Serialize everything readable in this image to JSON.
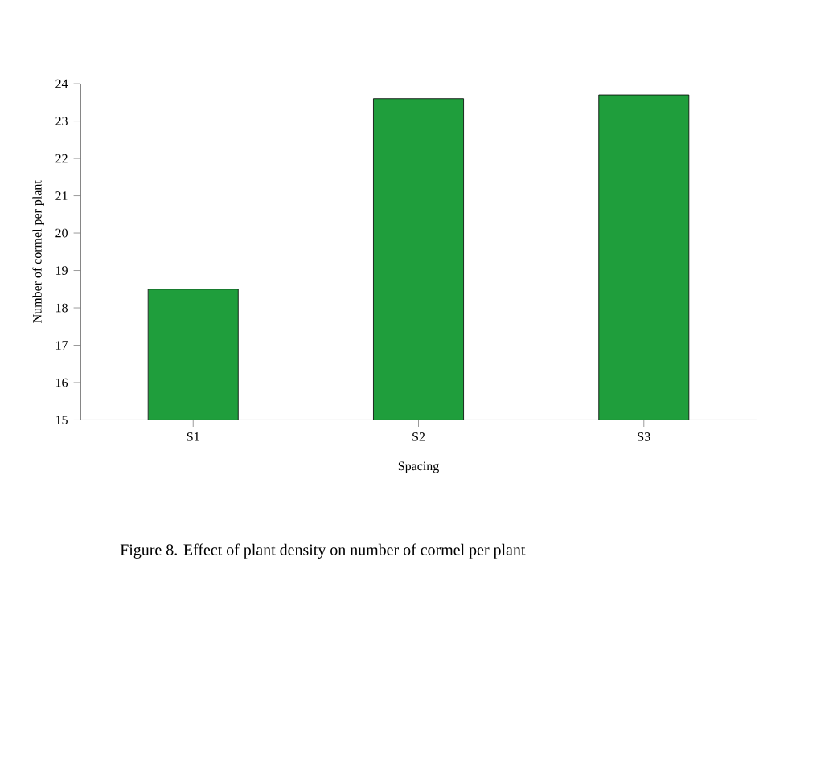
{
  "chart_data": {
    "type": "bar",
    "title": "Figure 8. Effect of plant density  on number of cormel per plant",
    "xlabel": "Spacing",
    "ylabel": "Number of cormel per plant",
    "categories": [
      "S1",
      "S2",
      "S3"
    ],
    "values": [
      18.5,
      23.6,
      23.7
    ],
    "color": "#1f9e3c",
    "ylim": [
      15,
      24
    ],
    "yticks": [
      15,
      16,
      17,
      18,
      19,
      20,
      21,
      22,
      23,
      24
    ]
  }
}
